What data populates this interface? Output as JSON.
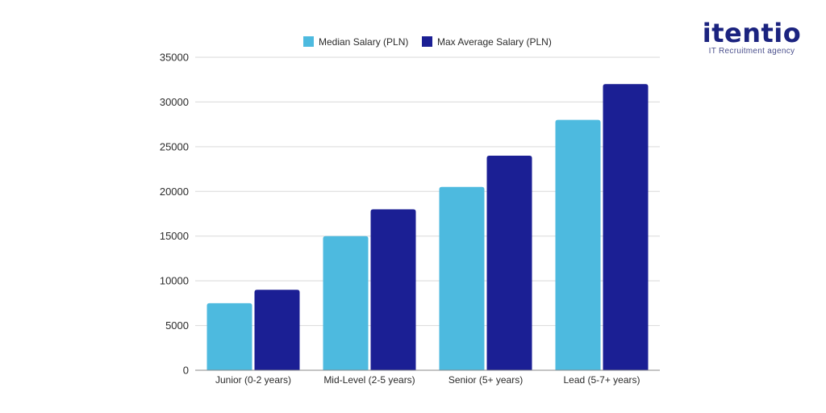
{
  "brand": {
    "name": "itentio",
    "tagline": "IT Recruitment agency",
    "color": "#1b237f"
  },
  "chart_data": {
    "type": "bar",
    "title": "",
    "xlabel": "",
    "ylabel": "",
    "categories": [
      "Junior (0-2 years)",
      "Mid-Level (2-5 years)",
      "Senior (5+ years)",
      "Lead (5-7+ years)"
    ],
    "series": [
      {
        "name": "Median Salary (PLN)",
        "color": "#4dbadf",
        "values": [
          7500,
          15000,
          20500,
          28000
        ]
      },
      {
        "name": "Max Average Salary (PLN)",
        "color": "#1b1f94",
        "values": [
          9000,
          18000,
          24000,
          32000
        ]
      }
    ],
    "ylim": [
      0,
      35000
    ],
    "yticks": [
      0,
      5000,
      10000,
      15000,
      20000,
      25000,
      30000,
      35000
    ],
    "grid": true,
    "legend_position": "top-center"
  }
}
